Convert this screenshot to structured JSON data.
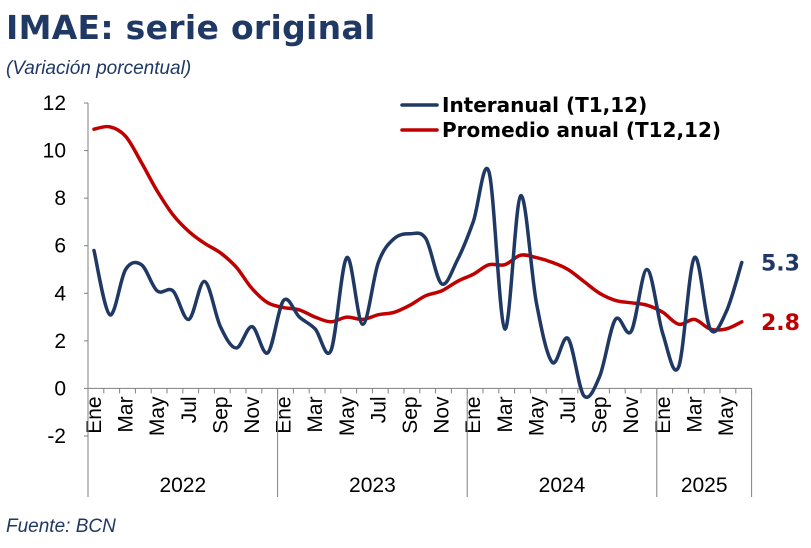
{
  "title": "IMAE: serie original",
  "subtitle": "(Variación porcentual)",
  "source": "Fuente: BCN",
  "chart_data": {
    "type": "line",
    "ylim": [
      -2,
      12
    ],
    "yticks": [
      "12",
      "10",
      "8",
      "6",
      "4",
      "2",
      "0",
      "-2"
    ],
    "month_labels": [
      "Ene",
      "Mar",
      "May",
      "Jul",
      "Sep",
      "Nov",
      "Ene",
      "Mar",
      "May",
      "Jul",
      "Sep",
      "Nov",
      "Ene",
      "Mar",
      "May",
      "Jul",
      "Sep",
      "Nov",
      "Ene",
      "Mar",
      "May"
    ],
    "years": [
      "2022",
      "2023",
      "2024",
      "2025"
    ],
    "x": [
      "2022-01",
      "2022-02",
      "2022-03",
      "2022-04",
      "2022-05",
      "2022-06",
      "2022-07",
      "2022-08",
      "2022-09",
      "2022-10",
      "2022-11",
      "2022-12",
      "2023-01",
      "2023-02",
      "2023-03",
      "2023-04",
      "2023-05",
      "2023-06",
      "2023-07",
      "2023-08",
      "2023-09",
      "2023-10",
      "2023-11",
      "2023-12",
      "2024-01",
      "2024-02",
      "2024-03",
      "2024-04",
      "2024-05",
      "2024-06",
      "2024-07",
      "2024-08",
      "2024-09",
      "2024-10",
      "2024-11",
      "2024-12",
      "2025-01",
      "2025-02",
      "2025-03",
      "2025-04",
      "2025-05",
      "2025-06"
    ],
    "series": [
      {
        "name": "Interanual (T1,12)",
        "color": "#1f3864",
        "end_label": "5.3",
        "values": [
          5.8,
          3.1,
          5.0,
          5.2,
          4.1,
          4.1,
          2.9,
          4.5,
          2.6,
          1.7,
          2.6,
          1.5,
          3.7,
          3.0,
          2.5,
          1.6,
          5.5,
          2.7,
          5.3,
          6.3,
          6.5,
          6.3,
          4.4,
          5.4,
          7.0,
          9.1,
          2.5,
          8.1,
          3.6,
          1.1,
          2.1,
          -0.3,
          0.5,
          2.9,
          2.4,
          5.0,
          2.3,
          0.9,
          5.5,
          2.5,
          3.2,
          5.3
        ]
      },
      {
        "name": "Promedio anual (T12,12)",
        "color": "#c00000",
        "end_label": "2.8",
        "values": [
          10.9,
          11.0,
          10.6,
          9.5,
          8.3,
          7.3,
          6.6,
          6.1,
          5.7,
          5.1,
          4.2,
          3.6,
          3.4,
          3.3,
          3.0,
          2.8,
          3.0,
          2.9,
          3.1,
          3.2,
          3.5,
          3.9,
          4.1,
          4.5,
          4.8,
          5.2,
          5.2,
          5.6,
          5.5,
          5.3,
          5.0,
          4.5,
          4.0,
          3.7,
          3.6,
          3.5,
          3.2,
          2.7,
          2.9,
          2.5,
          2.5,
          2.8
        ]
      }
    ],
    "legend_position": "top-right",
    "grid": false
  }
}
